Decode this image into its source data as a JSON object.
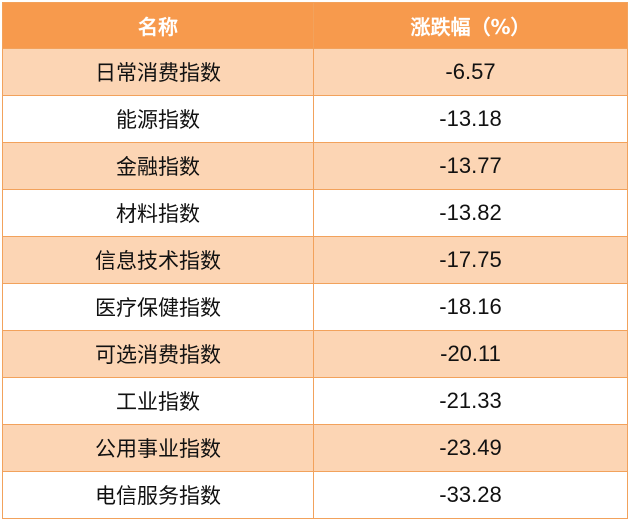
{
  "table": {
    "headers": [
      "名称",
      "涨跌幅（%）"
    ],
    "rows": [
      {
        "name": "日常消费指数",
        "change": "-6.57"
      },
      {
        "name": "能源指数",
        "change": "-13.18"
      },
      {
        "name": "金融指数",
        "change": "-13.77"
      },
      {
        "name": "材料指数",
        "change": "-13.82"
      },
      {
        "name": "信息技术指数",
        "change": "-17.75"
      },
      {
        "name": "医疗保健指数",
        "change": "-18.16"
      },
      {
        "name": "可选消费指数",
        "change": "-20.11"
      },
      {
        "name": "工业指数",
        "change": "-21.33"
      },
      {
        "name": "公用事业指数",
        "change": "-23.49"
      },
      {
        "name": "电信服务指数",
        "change": "-33.28"
      }
    ]
  },
  "colors": {
    "header_bg": "#f79a4d",
    "row_highlight": "#fcd5b4",
    "row_plain": "#ffffff",
    "border": "#f2a25c"
  }
}
